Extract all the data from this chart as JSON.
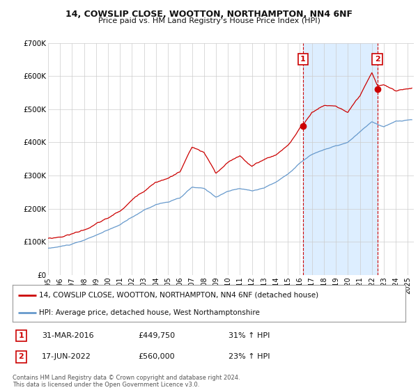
{
  "title": "14, COWSLIP CLOSE, WOOTTON, NORTHAMPTON, NN4 6NF",
  "subtitle": "Price paid vs. HM Land Registry's House Price Index (HPI)",
  "background_color": "#ffffff",
  "plot_bg_color": "#ffffff",
  "grid_color": "#cccccc",
  "hpi_line_color": "#6699cc",
  "sale_line_color": "#cc0000",
  "shade_color": "#ddeeff",
  "legend_line1": "14, COWSLIP CLOSE, WOOTTON, NORTHAMPTON, NN4 6NF (detached house)",
  "legend_line2": "HPI: Average price, detached house, West Northamptonshire",
  "transaction1_date": "31-MAR-2016",
  "transaction1_price": "£449,750",
  "transaction1_hpi": "31% ↑ HPI",
  "transaction2_date": "17-JUN-2022",
  "transaction2_price": "£560,000",
  "transaction2_hpi": "23% ↑ HPI",
  "footnote1": "Contains HM Land Registry data © Crown copyright and database right 2024.",
  "footnote2": "This data is licensed under the Open Government Licence v3.0.",
  "ylim": [
    0,
    700000
  ],
  "yticks": [
    0,
    100000,
    200000,
    300000,
    400000,
    500000,
    600000,
    700000
  ],
  "ytick_labels": [
    "£0",
    "£100K",
    "£200K",
    "£300K",
    "£400K",
    "£500K",
    "£600K",
    "£700K"
  ],
  "xmin": 1995.0,
  "xmax": 2025.5,
  "vline1_x": 2016.25,
  "vline2_x": 2022.46,
  "point1_x": 2016.25,
  "point1_y": 449750,
  "point2_x": 2022.46,
  "point2_y": 560000,
  "xtick_years": [
    1995,
    1996,
    1997,
    1998,
    1999,
    2000,
    2001,
    2002,
    2003,
    2004,
    2005,
    2006,
    2007,
    2008,
    2009,
    2010,
    2011,
    2012,
    2013,
    2014,
    2015,
    2016,
    2017,
    2018,
    2019,
    2020,
    2021,
    2022,
    2023,
    2024,
    2025
  ]
}
